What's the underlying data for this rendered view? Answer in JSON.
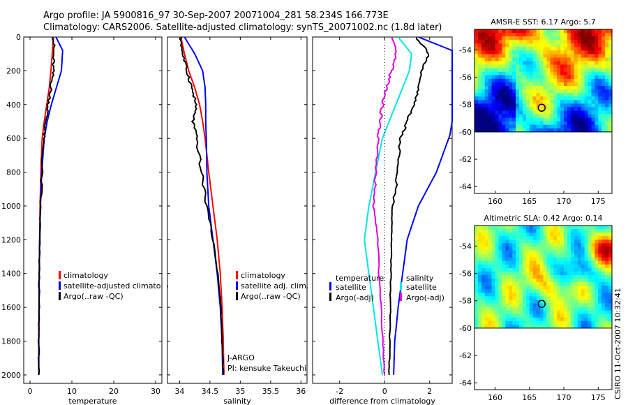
{
  "header": {
    "line1": "Argo profile: JA 5900816_97 30-Sep-2007 20071004_281 58.234S 166.773E",
    "line2": "Climatology: CARS2006. Satellite-adjusted climatology: synTS_20071002.nc (1.8d later)"
  },
  "colors": {
    "climatology": "#ff0000",
    "satellite": "#0000ff",
    "argo": "#000000",
    "diff_sat": "#00e5e5",
    "diff_argo": "#e000e0"
  },
  "chart_data": [
    {
      "type": "line",
      "xlabel": "temperature",
      "ylim": [
        2050,
        0
      ],
      "xlim": [
        -1.5,
        31.5
      ],
      "yticks": [
        0,
        200,
        400,
        600,
        800,
        1000,
        1200,
        1400,
        1600,
        1800,
        2000
      ],
      "xticks": [
        0,
        10,
        20,
        30
      ],
      "legend": [
        "climatology",
        "satellite-adjusted climatology",
        "Argo(..raw -QC)"
      ],
      "series": [
        {
          "name": "climatology",
          "color": "red",
          "x": [
            5.6,
            5.3,
            5.0,
            4.6,
            4.0,
            3.4,
            2.9,
            2.6,
            2.4,
            2.3,
            2.2,
            2.15,
            2.1,
            2.1
          ],
          "y": [
            0,
            100,
            200,
            300,
            400,
            500,
            600,
            800,
            1000,
            1200,
            1400,
            1600,
            1800,
            2000
          ]
        },
        {
          "name": "satellite-adjusted climatology",
          "color": "blue",
          "x": [
            6.2,
            7.8,
            7.5,
            6.3,
            5.1,
            4.1,
            3.4,
            2.8,
            2.5,
            2.3,
            2.2,
            2.15,
            2.1,
            2.1
          ],
          "y": [
            0,
            80,
            200,
            300,
            400,
            500,
            600,
            800,
            1000,
            1200,
            1400,
            1600,
            1800,
            2000
          ]
        },
        {
          "name": "Argo(..raw -QC)",
          "color": "black",
          "x": [
            5.7,
            5.6,
            5.5,
            5.0,
            4.4,
            3.8,
            3.2,
            2.8,
            2.5,
            2.3,
            2.2,
            2.15,
            2.1,
            2.1
          ],
          "y": [
            0,
            100,
            200,
            300,
            400,
            500,
            600,
            800,
            1000,
            1200,
            1400,
            1600,
            1800,
            2000
          ]
        }
      ]
    },
    {
      "type": "line",
      "xlabel": "salinity",
      "ylim": [
        2050,
        0
      ],
      "xlim": [
        33.8,
        36.1
      ],
      "xticks": [
        34,
        34.5,
        35,
        35.5,
        36
      ],
      "legend": [
        "climatology",
        "satellite adj. clim.",
        "Argo(..raw -QC)"
      ],
      "annotation": [
        "J-ARGO",
        "PI: kensuke Takeuchi"
      ],
      "series": [
        {
          "name": "climatology",
          "color": "red",
          "x": [
            34.02,
            34.08,
            34.15,
            34.25,
            34.33,
            34.38,
            34.42,
            34.48,
            34.55,
            34.62,
            34.67,
            34.7,
            34.72,
            34.73
          ],
          "y": [
            0,
            100,
            200,
            300,
            400,
            500,
            600,
            800,
            1000,
            1200,
            1400,
            1600,
            1800,
            2000
          ]
        },
        {
          "name": "satellite adj. clim.",
          "color": "blue",
          "x": [
            34.08,
            34.25,
            34.38,
            34.42,
            34.43,
            34.43,
            34.44,
            34.45,
            34.48,
            34.55,
            34.62,
            34.67,
            34.7,
            34.71
          ],
          "y": [
            0,
            100,
            200,
            300,
            400,
            500,
            600,
            800,
            1000,
            1200,
            1400,
            1600,
            1800,
            2000
          ]
        },
        {
          "name": "Argo(..raw -QC)",
          "color": "black",
          "x": [
            34.02,
            34.05,
            34.12,
            34.2,
            34.27,
            34.22,
            34.28,
            34.36,
            34.45,
            34.55,
            34.63,
            34.68,
            34.7,
            34.72
          ],
          "y": [
            0,
            100,
            200,
            300,
            400,
            500,
            600,
            800,
            1000,
            1200,
            1400,
            1600,
            1800,
            2000
          ]
        }
      ]
    },
    {
      "type": "line",
      "xlabel": "difference from climatology",
      "ylim": [
        2050,
        0
      ],
      "xlim": [
        -3.2,
        3.0
      ],
      "xticks": [
        -2,
        0,
        2
      ],
      "legend": [
        "temperature",
        "satellite",
        "Argo(-adj)",
        "salinity",
        "satellite",
        "Argo(-adj)"
      ],
      "series": [
        {
          "name": "temperature satellite",
          "color": "blue",
          "x": [
            1.5,
            3.0,
            3.0,
            3.0,
            3.0,
            3.0,
            2.9,
            2.3,
            1.5,
            1.0,
            0.8,
            0.6,
            0.45,
            0.4
          ],
          "y": [
            0,
            80,
            200,
            300,
            400,
            500,
            580,
            800,
            1000,
            1200,
            1400,
            1600,
            1800,
            2000
          ]
        },
        {
          "name": "temperature Argo(-adj)",
          "color": "black",
          "x": [
            1.4,
            2.0,
            1.6,
            1.5,
            1.3,
            1.0,
            0.7,
            0.6,
            0.35,
            0.3,
            0.28,
            0.25,
            0.22,
            0.2
          ],
          "y": [
            0,
            100,
            200,
            300,
            400,
            500,
            600,
            800,
            1000,
            1200,
            1400,
            1600,
            1800,
            2000
          ]
        },
        {
          "name": "salinity satellite",
          "color": "cyan",
          "x": [
            0.6,
            1.2,
            1.1,
            0.8,
            0.5,
            0.2,
            -0.1,
            -0.4,
            -0.7,
            -0.9,
            -0.7,
            -0.5,
            -0.3,
            -0.1
          ],
          "y": [
            0,
            100,
            200,
            300,
            400,
            500,
            600,
            800,
            1000,
            1200,
            1400,
            1600,
            1800,
            2000
          ]
        },
        {
          "name": "salinity Argo(-adj)",
          "color": "magenta",
          "x": [
            0.3,
            0.5,
            0.3,
            0.1,
            -0.1,
            -0.2,
            -0.3,
            -0.4,
            -0.5,
            -0.3,
            -0.25,
            -0.15,
            -0.08,
            0.0
          ],
          "y": [
            0,
            100,
            200,
            300,
            400,
            500,
            600,
            800,
            1000,
            1200,
            1400,
            1600,
            1800,
            2000
          ]
        }
      ]
    },
    {
      "type": "heatmap",
      "title": "AMSR-E SST: 6.17 Argo: 5.7",
      "xlim": [
        157,
        177
      ],
      "ylim": [
        -64.5,
        -52.5
      ],
      "xticks": [
        160,
        165,
        170,
        175
      ],
      "yticks": [
        -54,
        -56,
        -58,
        -60,
        -62,
        -64
      ],
      "data_lat_range": [
        -60,
        -52.5
      ],
      "marker": {
        "lon": 166.773,
        "lat": -58.234
      }
    },
    {
      "type": "heatmap",
      "title": "Altimetric SLA: 0.42 Argo: 0.14",
      "xlim": [
        157,
        177
      ],
      "ylim": [
        -64.5,
        -52.5
      ],
      "xticks": [
        160,
        165,
        170,
        175
      ],
      "yticks": [
        -54,
        -56,
        -58,
        -60,
        -62,
        -64
      ],
      "data_lat_range": [
        -60,
        -52.5
      ],
      "marker": {
        "lon": 166.773,
        "lat": -58.234
      }
    }
  ],
  "footer": {
    "stamp": "CSIRO 11-Oct-2007 10:32:41"
  }
}
